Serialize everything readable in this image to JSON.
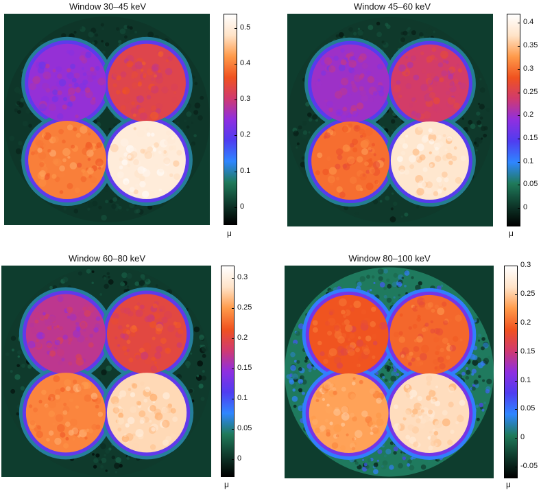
{
  "colormap": [
    "#000000",
    "#0f3a2c",
    "#1f7a5a",
    "#2f86ff",
    "#4f3df0",
    "#8f2fe0",
    "#d03a6f",
    "#f0521f",
    "#ff9a4a",
    "#ffe3c8",
    "#ffffff"
  ],
  "background_color": "#0e3d2e",
  "panels": [
    {
      "title": "Window 30–45 keV",
      "colorbar_unit": "μ",
      "colorbar_range": [
        -0.05,
        0.54
      ],
      "ticks": [
        "0.5",
        "0.4",
        "0.3",
        "0.2",
        "0.1",
        "0"
      ],
      "tick_values": [
        0.5,
        0.4,
        0.3,
        0.2,
        0.1,
        0
      ],
      "circle_levels": [
        0.25,
        0.33,
        0.4,
        0.5
      ],
      "rim_level": 0.2
    },
    {
      "title": "Window 45–60 keV",
      "colorbar_unit": "μ",
      "colorbar_range": [
        -0.04,
        0.42
      ],
      "ticks": [
        "0.4",
        "0.35",
        "0.3",
        "0.25",
        "0.2",
        "0.15",
        "0.1",
        "0.05",
        "0"
      ],
      "tick_values": [
        0.4,
        0.35,
        0.3,
        0.25,
        0.2,
        0.15,
        0.1,
        0.05,
        0
      ],
      "circle_levels": [
        0.2,
        0.24,
        0.3,
        0.38
      ],
      "rim_level": 0.15
    },
    {
      "title": "Window 60–80 keV",
      "colorbar_unit": "μ",
      "colorbar_range": [
        -0.03,
        0.32
      ],
      "ticks": [
        "0.3",
        "0.25",
        "0.2",
        "0.15",
        "0.1",
        "0.05",
        "0"
      ],
      "tick_values": [
        0.3,
        0.25,
        0.2,
        0.15,
        0.1,
        0.05,
        0
      ],
      "circle_levels": [
        0.17,
        0.2,
        0.24,
        0.28
      ],
      "rim_level": 0.12
    },
    {
      "title": "Window 80–100 keV",
      "colorbar_unit": "μ",
      "colorbar_range": [
        -0.07,
        0.3
      ],
      "ticks": [
        "0.3",
        "0.25",
        "0.2",
        "0.15",
        "0.1",
        "0.05",
        "0",
        "-0.05"
      ],
      "tick_values": [
        0.3,
        0.25,
        0.2,
        0.15,
        0.1,
        0.05,
        0,
        -0.05
      ],
      "circle_levels": [
        0.19,
        0.2,
        0.23,
        0.26
      ],
      "rim_level": 0.1
    }
  ]
}
